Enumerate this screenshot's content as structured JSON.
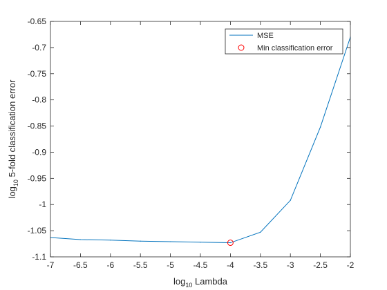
{
  "chart_data": {
    "type": "line",
    "xlabel_base": "log",
    "xlabel_sub": "10",
    "xlabel_rest": " Lambda",
    "ylabel_base": "log",
    "ylabel_sub": "10",
    "ylabel_rest": " 5-fold classification error",
    "xlim": [
      -7,
      -2
    ],
    "ylim": [
      -1.1,
      -0.65
    ],
    "xticks": [
      -7,
      -6.5,
      -6,
      -5.5,
      -5,
      -4.5,
      -4,
      -3.5,
      -3,
      -2.5,
      -2
    ],
    "yticks": [
      -1.1,
      -1.05,
      -1,
      -0.95,
      -0.9,
      -0.85,
      -0.8,
      -0.75,
      -0.7,
      -0.65
    ],
    "xtick_labels": [
      "-7",
      "-6.5",
      "-6",
      "-5.5",
      "-5",
      "-4.5",
      "-4",
      "-3.5",
      "-3",
      "-2.5",
      "-2"
    ],
    "ytick_labels": [
      "-1.1",
      "-1.05",
      "-1",
      "-0.95",
      "-0.9",
      "-0.85",
      "-0.8",
      "-0.75",
      "-0.7",
      "-0.65"
    ],
    "grid": false,
    "legend_position": "top-right",
    "series": [
      {
        "name": "MSE",
        "color": "#0072BD",
        "x": [
          -7,
          -6.5,
          -6,
          -5.5,
          -5,
          -4.5,
          -4,
          -3.5,
          -3,
          -2.5,
          -2
        ],
        "y": [
          -1.063,
          -1.067,
          -1.068,
          -1.07,
          -1.071,
          -1.072,
          -1.073,
          -1.053,
          -0.992,
          -0.852,
          -0.68
        ]
      },
      {
        "name": "Min classification error",
        "color": "#ff0000",
        "marker": "open-circle",
        "x": [
          -4
        ],
        "y": [
          -1.073
        ]
      }
    ]
  }
}
